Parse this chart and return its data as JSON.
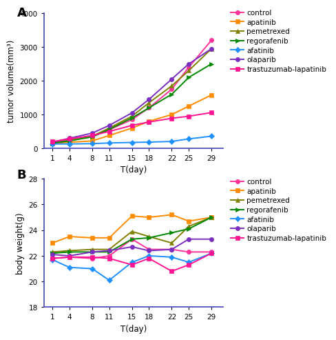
{
  "x_days": [
    1,
    4,
    8,
    11,
    15,
    18,
    22,
    25,
    29
  ],
  "panel_A": {
    "title_label": "A",
    "ylabel": "tumor volume(mm³)",
    "xlabel": "T(day)",
    "ylim": [
      0,
      4000
    ],
    "yticks": [
      0,
      1000,
      2000,
      3000,
      4000
    ],
    "series": {
      "control": {
        "color": "#FF3399",
        "marker": "o",
        "data": [
          170,
          250,
          350,
          550,
          850,
          1200,
          1750,
          2400,
          3200
        ]
      },
      "apatinib": {
        "color": "#FF8C00",
        "marker": "s",
        "data": [
          150,
          180,
          220,
          380,
          600,
          800,
          1000,
          1250,
          1580
        ]
      },
      "pemetrexed": {
        "color": "#808000",
        "marker": "^",
        "data": [
          160,
          230,
          360,
          600,
          950,
          1350,
          1850,
          2300,
          2950
        ]
      },
      "regorafenib": {
        "color": "#008800",
        "marker": ">",
        "data": [
          155,
          220,
          340,
          560,
          900,
          1200,
          1600,
          2100,
          2500
        ]
      },
      "afatinib": {
        "color": "#1E90FF",
        "marker": "D",
        "data": [
          130,
          130,
          140,
          160,
          175,
          185,
          205,
          280,
          360
        ]
      },
      "olaparib": {
        "color": "#7B2FBE",
        "marker": "o",
        "data": [
          180,
          300,
          450,
          680,
          1050,
          1450,
          2050,
          2500,
          2950
        ]
      },
      "trastuzumab-lapatinib": {
        "color": "#FF1493",
        "marker": "s",
        "data": [
          200,
          280,
          380,
          500,
          680,
          780,
          890,
          950,
          1060
        ]
      }
    }
  },
  "panel_B": {
    "title_label": "B",
    "ylabel": "body weight(g)",
    "xlabel": "T(day)",
    "ylim": [
      18,
      28
    ],
    "yticks": [
      18,
      20,
      22,
      24,
      26,
      28
    ],
    "series": {
      "control": {
        "color": "#FF3399",
        "marker": "o",
        "data": [
          21.8,
          21.9,
          21.8,
          22.0,
          23.3,
          22.5,
          22.5,
          22.3,
          22.3
        ]
      },
      "apatinib": {
        "color": "#FF8C00",
        "marker": "s",
        "data": [
          23.0,
          23.5,
          23.4,
          23.4,
          25.1,
          25.0,
          25.2,
          24.7,
          25.0
        ]
      },
      "pemetrexed": {
        "color": "#808000",
        "marker": "^",
        "data": [
          22.3,
          22.4,
          22.5,
          22.5,
          23.9,
          23.5,
          23.0,
          24.3,
          25.0
        ]
      },
      "regorafenib": {
        "color": "#008800",
        "marker": ">",
        "data": [
          22.2,
          22.3,
          22.3,
          22.3,
          23.3,
          23.4,
          23.8,
          24.1,
          25.0
        ]
      },
      "afatinib": {
        "color": "#1E90FF",
        "marker": "D",
        "data": [
          21.7,
          21.1,
          21.0,
          20.1,
          21.5,
          22.0,
          21.9,
          21.5,
          22.2
        ]
      },
      "olaparib": {
        "color": "#7B2FBE",
        "marker": "o",
        "data": [
          22.1,
          22.0,
          22.3,
          22.4,
          22.7,
          22.4,
          22.5,
          23.3,
          23.3
        ]
      },
      "trastuzumab-lapatinib": {
        "color": "#FF1493",
        "marker": "s",
        "data": [
          21.8,
          21.9,
          21.9,
          21.8,
          21.3,
          21.8,
          20.8,
          21.3,
          22.2
        ]
      }
    }
  },
  "legend_order": [
    "control",
    "apatinib",
    "pemetrexed",
    "regorafenib",
    "afatinib",
    "olaparib",
    "trastuzumab-lapatinib"
  ],
  "axis_color": "#4444BB",
  "label_fontsize": 8.5,
  "tick_fontsize": 7.5,
  "legend_fontsize": 7.5,
  "panel_label_fontsize": 13,
  "linewidth": 1.4,
  "markersize": 4.5
}
